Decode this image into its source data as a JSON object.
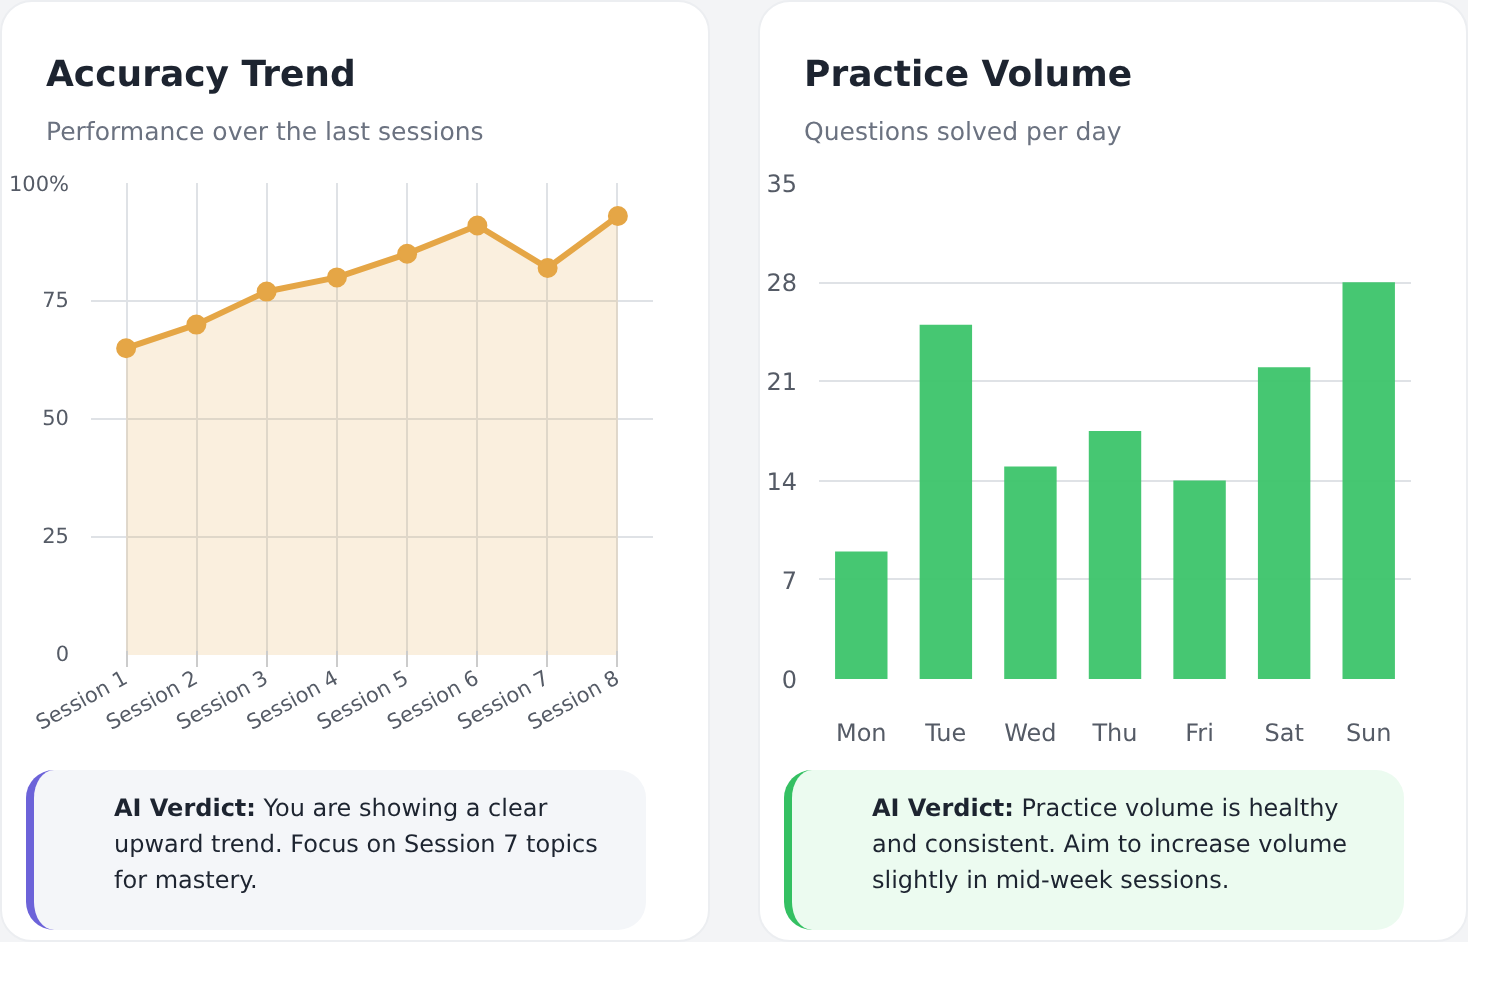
{
  "chart_data": [
    {
      "type": "area",
      "title": "Accuracy Trend",
      "subtitle": "Performance over the last sessions",
      "categories": [
        "Session 1",
        "Session 2",
        "Session 3",
        "Session 4",
        "Session 5",
        "Session 6",
        "Session 7",
        "Session 8"
      ],
      "series": [
        {
          "color": "#e5a646",
          "values": [
            65,
            70,
            77,
            80,
            85,
            91,
            82,
            93
          ]
        }
      ],
      "ylim": [
        0,
        100
      ],
      "yticks": [
        0,
        25,
        50,
        75,
        {
          "value": 100,
          "label": "100%"
        }
      ],
      "grid": true,
      "marker": "circle",
      "line_style": "solid",
      "annotations": [
        "AI Verdict: You are showing a clear upward trend. Focus on Session 7 topics for mastery."
      ]
    },
    {
      "type": "bar",
      "title": "Practice Volume",
      "subtitle": "Questions solved per day",
      "categories": [
        "Mon",
        "Tue",
        "Wed",
        "Thu",
        "Fri",
        "Sat",
        "Sun"
      ],
      "series": [
        {
          "color": "#3cc46a",
          "values": [
            9,
            25,
            15,
            17.5,
            14,
            22,
            28
          ]
        }
      ],
      "ylim": [
        0,
        35
      ],
      "yticks": [
        0,
        7,
        14,
        21,
        28,
        35
      ],
      "grid": "y",
      "annotations": [
        "AI Verdict: Practice volume is healthy and consistent. Aim to increase volume slightly in mid-week sessions."
      ]
    }
  ]
}
